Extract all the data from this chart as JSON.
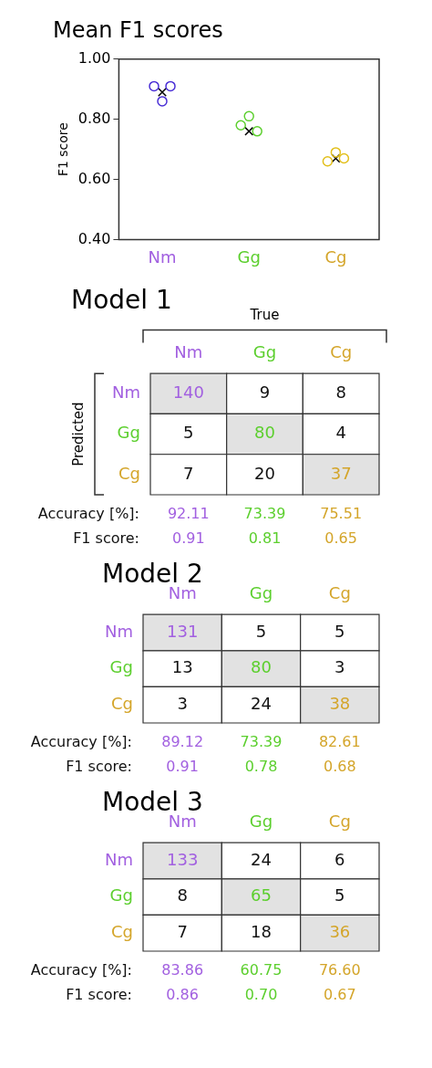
{
  "chart_data": [
    {
      "type": "scatter",
      "title": "Mean F1 scores",
      "ylabel": "F1 score",
      "categories": [
        "Nm",
        "Gg",
        "Cg"
      ],
      "ylim": [
        0.4,
        1.0
      ],
      "yticks": [
        {
          "value": 0.4,
          "label": "0.40"
        },
        {
          "value": 0.6,
          "label": "0.60"
        },
        {
          "value": 0.8,
          "label": "0.80"
        },
        {
          "value": 1.0,
          "label": "1.00"
        }
      ],
      "grid": false,
      "legend": false,
      "marker": "circle",
      "series": [
        {
          "colors": [
            "#4a2fd6",
            "#5ccf2e",
            "#e2bf1a"
          ],
          "x": [
            "Nm",
            "Gg",
            "Cg"
          ],
          "values": [
            0.91,
            0.78,
            0.66
          ]
        },
        {
          "colors": [
            "#4a2fd6",
            "#5ccf2e",
            "#e2bf1a"
          ],
          "x": [
            "Nm",
            "Gg",
            "Cg"
          ],
          "values": [
            0.91,
            0.76,
            0.67
          ]
        },
        {
          "colors": [
            "#4a2fd6",
            "#5ccf2e",
            "#e2bf1a"
          ],
          "x": [
            "Nm",
            "Gg",
            "Cg"
          ],
          "values": [
            0.86,
            0.81,
            0.69
          ]
        },
        {
          "color": "#000000",
          "marker": "cross",
          "x": [
            "Nm",
            "Gg",
            "Cg"
          ],
          "values": [
            0.89,
            0.76,
            0.67
          ]
        }
      ],
      "colors": [
        "#a260e0",
        "#5ccf2e",
        "#d4a52a"
      ]
    },
    {
      "type": "heatmap",
      "title": "Model 1",
      "xlabel": "True",
      "ylabel": "Predicted",
      "categories": [
        "Nm",
        "Gg",
        "Cg"
      ],
      "y_categories": [
        "Nm",
        "Gg",
        "Cg"
      ],
      "colors": [
        "#a260e0",
        "#5ccf2e",
        "#d4a52a"
      ],
      "cells": [
        [
          140,
          9,
          8
        ],
        [
          5,
          80,
          4
        ],
        [
          7,
          20,
          37
        ]
      ],
      "data_labels": true,
      "annotations": [
        "Accuracy [%]:",
        "92.11",
        "73.39",
        "75.51",
        "F1 score:",
        "0.91",
        "0.81",
        "0.65"
      ]
    },
    {
      "type": "heatmap",
      "title": "Model 2",
      "categories": [
        "Nm",
        "Gg",
        "Cg"
      ],
      "y_categories": [
        "Nm",
        "Gg",
        "Cg"
      ],
      "colors": [
        "#a260e0",
        "#5ccf2e",
        "#d4a52a"
      ],
      "cells": [
        [
          131,
          5,
          5
        ],
        [
          13,
          80,
          3
        ],
        [
          3,
          24,
          38
        ]
      ],
      "data_labels": true,
      "annotations": [
        "Accuracy [%]:",
        "89.12",
        "73.39",
        "82.61",
        "F1 score:",
        "0.91",
        "0.78",
        "0.68"
      ]
    },
    {
      "type": "heatmap",
      "title": "Model 3",
      "categories": [
        "Nm",
        "Gg",
        "Cg"
      ],
      "y_categories": [
        "Nm",
        "Gg",
        "Cg"
      ],
      "colors": [
        "#a260e0",
        "#5ccf2e",
        "#d4a52a"
      ],
      "cells": [
        [
          133,
          24,
          6
        ],
        [
          8,
          65,
          5
        ],
        [
          7,
          18,
          36
        ]
      ],
      "data_labels": true,
      "annotations": [
        "Accuracy [%]:",
        "83.86",
        "60.75",
        "76.60",
        "F1 score:",
        "0.86",
        "0.70",
        "0.67"
      ]
    }
  ]
}
